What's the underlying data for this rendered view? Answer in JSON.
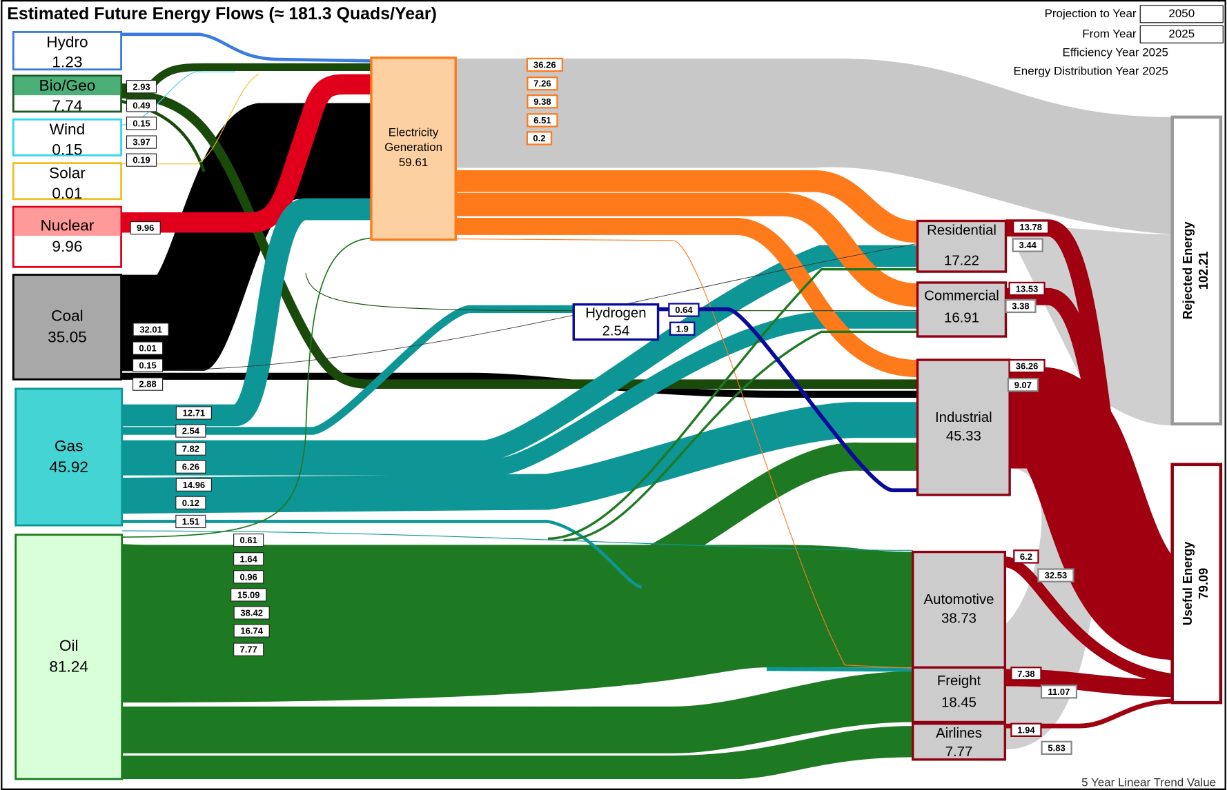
{
  "title": "Estimated Future Energy Flows  (≈ 181.3 Quads/Year)",
  "settings": [
    {
      "label": "Projection to Year",
      "value": "2050"
    },
    {
      "label": "From Year",
      "value": "2025"
    }
  ],
  "notes": [
    "Efficiency Year 2025",
    "Energy Distribution Year 2025"
  ],
  "sources": [
    {
      "name": "Hydro",
      "value": 1.23
    },
    {
      "name": "Bio/Geo",
      "value": 7.74
    },
    {
      "name": "Wind",
      "value": 0.15
    },
    {
      "name": "Solar",
      "value": 0.01
    },
    {
      "name": "Nuclear",
      "value": 9.96
    },
    {
      "name": "Coal",
      "value": 35.05
    },
    {
      "name": "Gas",
      "value": 45.92
    },
    {
      "name": "Oil",
      "value": 81.24
    }
  ],
  "conversion": [
    {
      "name": "Electricity Generation",
      "value": 59.61
    },
    {
      "name": "Hydrogen",
      "value": 2.54
    }
  ],
  "sectors": [
    {
      "name": "Residential",
      "value": 17.22
    },
    {
      "name": "Commercial",
      "value": 16.91
    },
    {
      "name": "Industrial",
      "value": 45.33
    },
    {
      "name": "Automotive",
      "value": 38.73
    },
    {
      "name": "Freight",
      "value": 18.45
    },
    {
      "name": "Airlines",
      "value": 7.77
    }
  ],
  "outputs": [
    {
      "name": "Rejected Energy",
      "value": 102.21
    },
    {
      "name": "Useful Energy",
      "value": 79.09
    }
  ],
  "flow_labels": [
    [
      2.93,
      0.49,
      0.15,
      3.97,
      0.19
    ],
    [
      9.96
    ],
    [
      32.01,
      0.01,
      0.15,
      2.88
    ],
    [
      12.71,
      2.54,
      7.82,
      6.26,
      14.96,
      0.12,
      1.51
    ],
    [
      0.61,
      1.64,
      0.96,
      15.09,
      38.42,
      16.74,
      7.77
    ],
    [
      36.26,
      7.26,
      9.38,
      6.51,
      0.2
    ],
    [
      0.64,
      1.9
    ],
    [
      13.78,
      3.44
    ],
    [
      13.53,
      3.38
    ],
    [
      36.26,
      9.07
    ],
    [
      6.2,
      32.53
    ],
    [
      7.38,
      11.07
    ],
    [
      1.94,
      5.83
    ]
  ],
  "footer": "5 Year Linear Trend Value"
}
